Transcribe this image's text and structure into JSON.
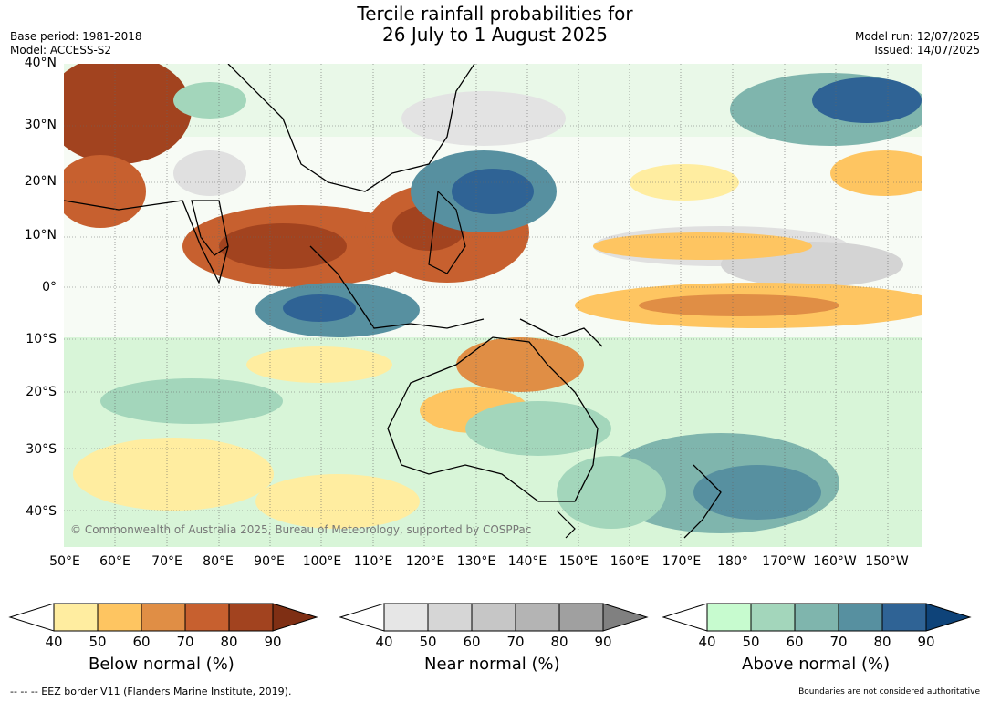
{
  "title": {
    "line1": "Tercile rainfall probabilities for",
    "line2": "26 July to 1 August 2025"
  },
  "meta_left": {
    "base_period": "Base period: 1981-2018",
    "model": "Model: ACCESS-S2"
  },
  "meta_right": {
    "model_run": "Model run: 12/07/2025",
    "issued": "Issued: 14/07/2025"
  },
  "map": {
    "lat_labels": [
      "40°N",
      "30°N",
      "20°N",
      "10°N",
      "0°",
      "10°S",
      "20°S",
      "30°S",
      "40°S"
    ],
    "lon_labels": [
      "50°E",
      "60°E",
      "70°E",
      "80°E",
      "90°E",
      "100°E",
      "110°E",
      "120°E",
      "130°E",
      "140°E",
      "150°E",
      "160°E",
      "170°E",
      "180°",
      "170°W",
      "160°W",
      "150°W"
    ],
    "copyright": "© Commonwealth of Australia 2025, Bureau of Meteorology, supported by COSPPac"
  },
  "legends": [
    {
      "label": "Below normal (%)",
      "ticks": [
        "40",
        "50",
        "60",
        "70",
        "80",
        "90"
      ],
      "colors": [
        "#ffeda0",
        "#fec561",
        "#e08e45",
        "#c7602f",
        "#a2431f",
        "#7f2f14"
      ]
    },
    {
      "label": "Near normal (%)",
      "ticks": [
        "40",
        "50",
        "60",
        "70",
        "80",
        "90"
      ],
      "colors": [
        "#e6e6e6",
        "#d6d6d6",
        "#c6c6c6",
        "#b4b4b4",
        "#a0a0a0",
        "#808080"
      ]
    },
    {
      "label": "Above normal (%)",
      "ticks": [
        "40",
        "50",
        "60",
        "70",
        "80",
        "90"
      ],
      "colors": [
        "#c7fbcf",
        "#a3d6bb",
        "#7fb5ad",
        "#5790a0",
        "#2f6395",
        "#0e4379"
      ]
    }
  ],
  "footer": {
    "eez": "--  --  -- EEZ border V11 (Flanders Marine Institute, 2019).",
    "disclaimer": "Boundaries are not considered authoritative"
  }
}
